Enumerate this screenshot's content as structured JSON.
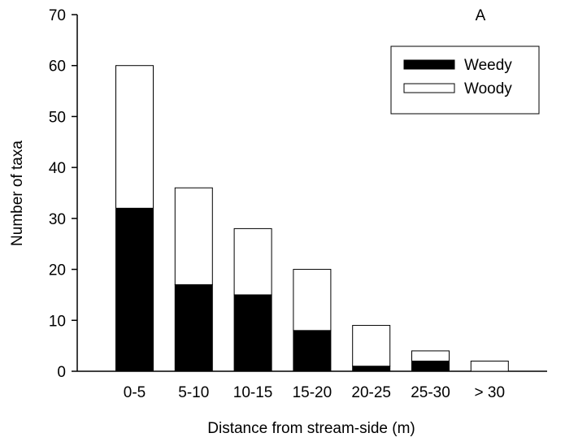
{
  "chart_data": {
    "type": "bar",
    "stacked": true,
    "panel_label": "A",
    "xlabel": "Distance from stream-side (m)",
    "ylabel": "Number of taxa",
    "ylim": [
      0,
      70
    ],
    "yticks": [
      0,
      10,
      20,
      30,
      40,
      50,
      60,
      70
    ],
    "categories": [
      "0-5",
      "5-10",
      "10-15",
      "15-20",
      "20-25",
      "25-30",
      "> 30"
    ],
    "series": [
      {
        "name": "Weedy",
        "color": "#000000",
        "values": [
          32,
          17,
          15,
          8,
          1,
          2,
          0
        ]
      },
      {
        "name": "Woody",
        "color": "#ffffff",
        "values": [
          28,
          19,
          13,
          12,
          8,
          2,
          2
        ]
      }
    ],
    "legend_position": "top-right",
    "grid": false
  }
}
